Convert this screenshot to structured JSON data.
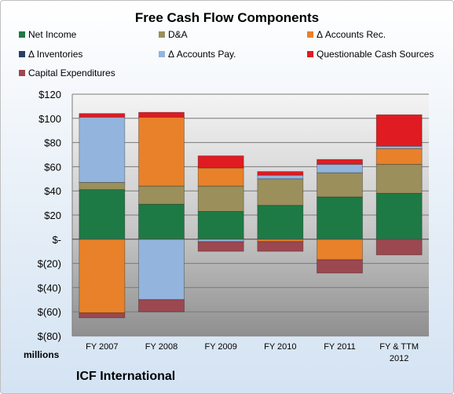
{
  "header": {
    "title": "Free Cash Flow Components"
  },
  "footer": {
    "company": "ICF International",
    "units": "millions"
  },
  "chart_data": {
    "type": "bar",
    "stacked": true,
    "title": "Free Cash Flow Components",
    "categories": [
      "FY 2007",
      "FY 2008",
      "FY 2009",
      "FY 2010",
      "FY 2011",
      "FY & TTM|2012"
    ],
    "ylim": [
      -80,
      120
    ],
    "y_ticks": [
      120,
      100,
      80,
      60,
      40,
      20,
      0,
      -20,
      -40,
      -60,
      -80
    ],
    "y_tick_labels": [
      "$120",
      "$100",
      "$80",
      "$60",
      "$40",
      "$20",
      "$-",
      "$(20)",
      "$(40)",
      "$(60)",
      "$(80)"
    ],
    "grid": true,
    "legend_position": "top",
    "series": [
      {
        "name": "Net Income",
        "color": "#1e7a45",
        "values": [
          41,
          29,
          23,
          28,
          35,
          38
        ]
      },
      {
        "name": "D&A",
        "color": "#9b8f5c",
        "values": [
          6,
          15,
          21,
          22,
          20,
          24
        ]
      },
      {
        "name": "Δ Accounts Rec.",
        "color": "#e8812a",
        "values": [
          -61,
          57,
          15,
          -2,
          -17,
          13
        ]
      },
      {
        "name": "Δ Inventories",
        "color": "#2c3e66",
        "values": [
          0,
          0,
          0,
          0,
          0,
          0
        ]
      },
      {
        "name": "Δ Accounts Pay.",
        "color": "#93b4dc",
        "values": [
          54,
          -50,
          -2,
          3,
          7,
          2
        ]
      },
      {
        "name": "Questionable Cash Sources",
        "color": "#e01b22",
        "values": [
          3,
          4,
          10,
          3,
          4,
          26
        ]
      },
      {
        "name": "Capital Expenditures",
        "color": "#9c4850",
        "values": [
          -4,
          -10,
          -8,
          -8,
          -11,
          -13
        ]
      }
    ]
  }
}
